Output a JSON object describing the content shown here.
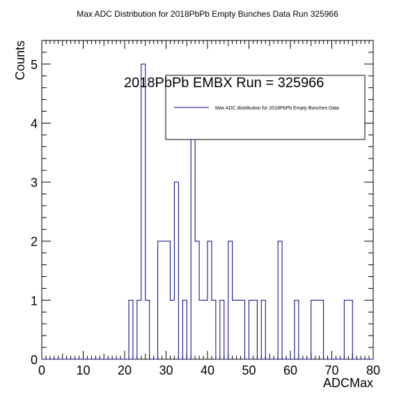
{
  "chart_data": {
    "type": "histogram",
    "title": "Max ADC Distribution for 2018PbPb Empty Bunches Data Run 325966",
    "xlabel": "ADCMax",
    "ylabel": "Counts",
    "xlim": [
      0,
      80
    ],
    "ylim": [
      0,
      5.4
    ],
    "bin_width": 1,
    "x_ticks": [
      "0",
      "10",
      "20",
      "30",
      "40",
      "50",
      "60",
      "70",
      "80"
    ],
    "y_ticks": [
      "0",
      "1",
      "2",
      "3",
      "4",
      "5"
    ],
    "annotation": "2018PbPb EMBX Run = 325966",
    "legend": {
      "label": "Max ADC distribution for 2018PbPb Empty Bunches Data",
      "placement": "top-right"
    },
    "series": [
      {
        "name": "Max ADC distribution for 2018PbPb Empty Bunches Data",
        "color": "#000080",
        "bin_edges": [
          21,
          22,
          23,
          24,
          25,
          26,
          27,
          28,
          29,
          30,
          31,
          32,
          33,
          34,
          35,
          36,
          37,
          38,
          39,
          40,
          41,
          42,
          43,
          44,
          45,
          46,
          47,
          48,
          49,
          50,
          51,
          52,
          53,
          54,
          55,
          56,
          57,
          58,
          59,
          60,
          61,
          62,
          63,
          64,
          65,
          66,
          67,
          68,
          69,
          70,
          71,
          72,
          73,
          74,
          75,
          76
        ],
        "values": [
          1,
          0,
          1,
          5,
          1,
          0,
          0,
          2,
          2,
          2,
          1,
          3,
          0,
          1,
          0,
          4,
          2,
          1,
          1,
          2,
          1,
          0,
          1,
          0,
          2,
          1,
          1,
          1,
          0,
          1,
          1,
          0,
          1,
          0,
          0,
          0,
          2,
          0,
          0,
          0,
          1,
          0,
          0,
          0,
          1,
          1,
          1,
          0,
          0,
          0,
          0,
          0,
          1,
          1,
          0
        ]
      }
    ]
  }
}
